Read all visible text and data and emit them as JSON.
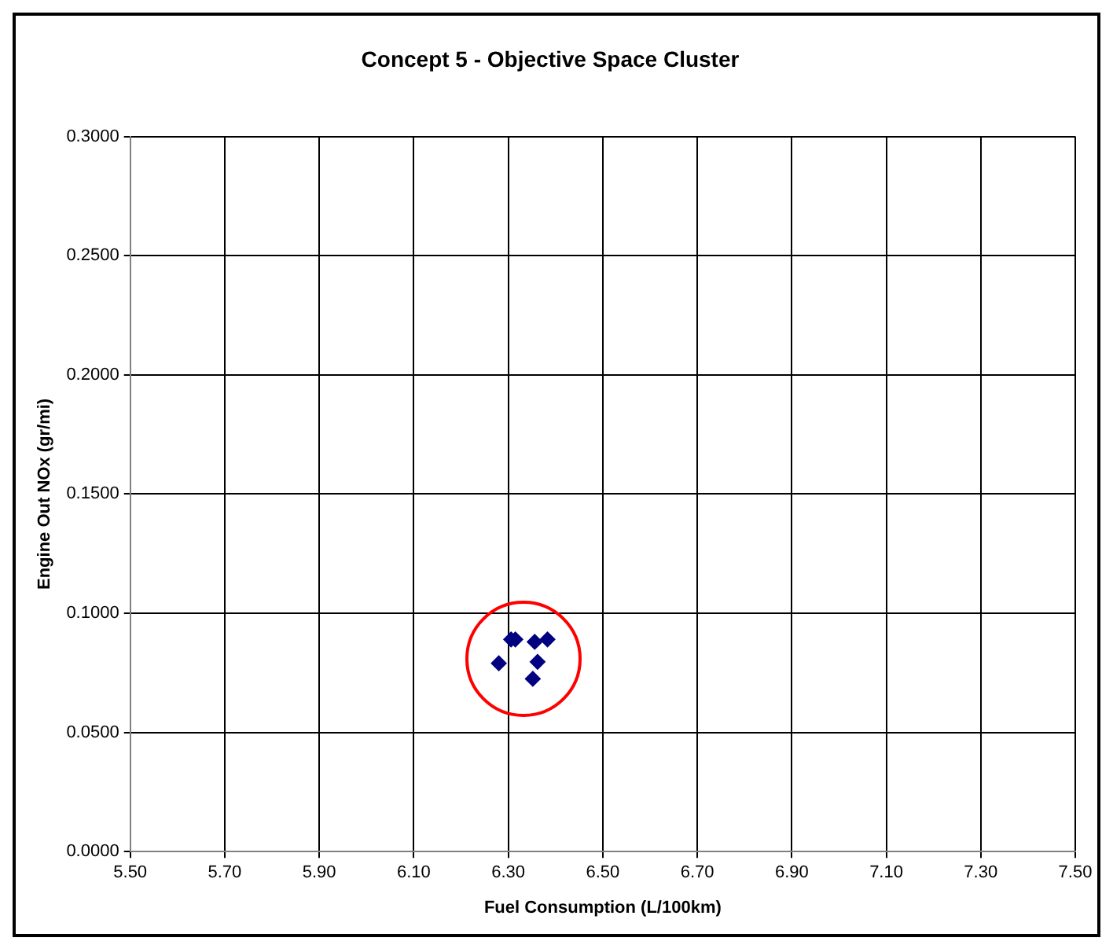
{
  "chart_data": {
    "type": "scatter",
    "title": "Concept 5 - Objective Space Cluster",
    "xlabel": "Fuel Consumption (L/100km)",
    "ylabel": "Engine Out NOx (gr/mi)",
    "x": [
      6.306,
      6.315,
      6.356,
      6.383,
      6.28,
      6.362,
      6.352
    ],
    "series": [
      {
        "color": "#000080",
        "values": [
          0.089,
          0.089,
          0.088,
          0.089,
          0.079,
          0.0796,
          0.0725
        ]
      }
    ],
    "xlim": [
      5.5,
      7.5
    ],
    "xticks": [
      {
        "value": 5.5,
        "label": "5.50"
      },
      {
        "value": 5.7,
        "label": "5.70"
      },
      {
        "value": 5.9,
        "label": "5.90"
      },
      {
        "value": 6.1,
        "label": "6.10"
      },
      {
        "value": 6.3,
        "label": "6.30"
      },
      {
        "value": 6.5,
        "label": "6.50"
      },
      {
        "value": 6.7,
        "label": "6.70"
      },
      {
        "value": 6.9,
        "label": "6.90"
      },
      {
        "value": 7.1,
        "label": "7.10"
      },
      {
        "value": 7.3,
        "label": "7.30"
      },
      {
        "value": 7.5,
        "label": "7.50"
      }
    ],
    "ylim": [
      0,
      0.3
    ],
    "yticks": [
      {
        "value": 0,
        "label": "0.0000"
      },
      {
        "value": 0.05,
        "label": "0.0500"
      },
      {
        "value": 0.1,
        "label": "0.1000"
      },
      {
        "value": 0.15,
        "label": "0.1500"
      },
      {
        "value": 0.2,
        "label": "0.2000"
      },
      {
        "value": 0.25,
        "label": "0.2500"
      },
      {
        "value": 0.3,
        "label": "0.3000"
      }
    ],
    "grid": true,
    "marker": "diamond"
  }
}
